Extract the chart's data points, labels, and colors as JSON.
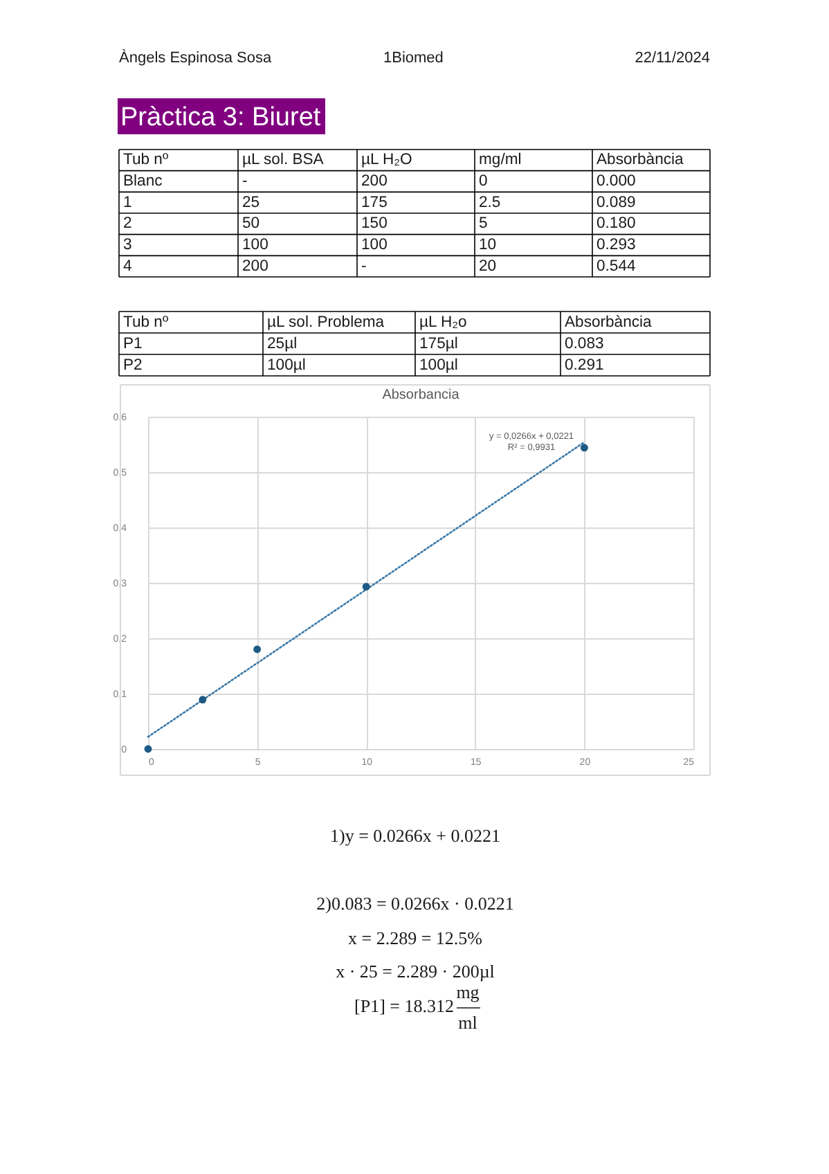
{
  "chart_data": {
    "type": "scatter",
    "title": "Absorbancia",
    "series": [
      {
        "type": "line",
        "x": [
          0,
          20
        ],
        "values": [
          0.022,
          0.554
        ],
        "color": "#3a78a8",
        "line_style": "dotted"
      },
      {
        "x": [
          0,
          2.5,
          5,
          10,
          20
        ],
        "values": [
          0,
          0.089,
          0.18,
          0.293,
          0.544
        ],
        "color": "#1d5a84",
        "marker": "circle"
      }
    ],
    "xlim": [
      0,
      25
    ],
    "ylim": [
      0,
      0.6
    ],
    "xticks": [
      0,
      5,
      10,
      15,
      20,
      25
    ],
    "yticks": [
      0,
      {
        "value": 0.1,
        "label": "0,1"
      },
      {
        "value": 0.2,
        "label": "0,2"
      },
      {
        "value": 0.3,
        "label": "0,3"
      },
      {
        "value": 0.4,
        "label": "0,4"
      },
      {
        "value": 0.5,
        "label": "0,5"
      },
      {
        "value": 0.6,
        "label": "0,6"
      }
    ],
    "grid": true,
    "annotations": [
      "Àngels Espinosa Sosa",
      "1Biomed",
      "22/11/2024",
      "Pràctica 3: Biuret",
      "Tub nº",
      "µL sol. BSA",
      "µL H₂O",
      "mg/ml",
      "Absorbància",
      "Blanc",
      "-",
      "200",
      "0",
      "0.000",
      "1",
      "25",
      "175",
      "2.5",
      "0.089",
      "2",
      "50",
      "150",
      "5",
      "0.180",
      "3",
      "100",
      "100",
      "10",
      "0.293",
      "4",
      "200",
      "-",
      "20",
      "0.544",
      "Tub nº",
      "µL sol. Problema",
      "µL H₂o",
      "Absorbància",
      "P1",
      "25µl",
      "175µl",
      "0.083",
      "P2",
      "100µl",
      "100µl",
      "0.291",
      "y = 0,0266x + 0,0221",
      "R² = 0,9931",
      "1)y = 0.0266x + 0.0221",
      "2)0.083 = 0.0266x · 0.0221",
      "x = 2.289 = 12.5%",
      "x · 25 = 2.289 · 200µl",
      "[P1] = 18.312",
      "mg",
      "ml"
    ]
  }
}
